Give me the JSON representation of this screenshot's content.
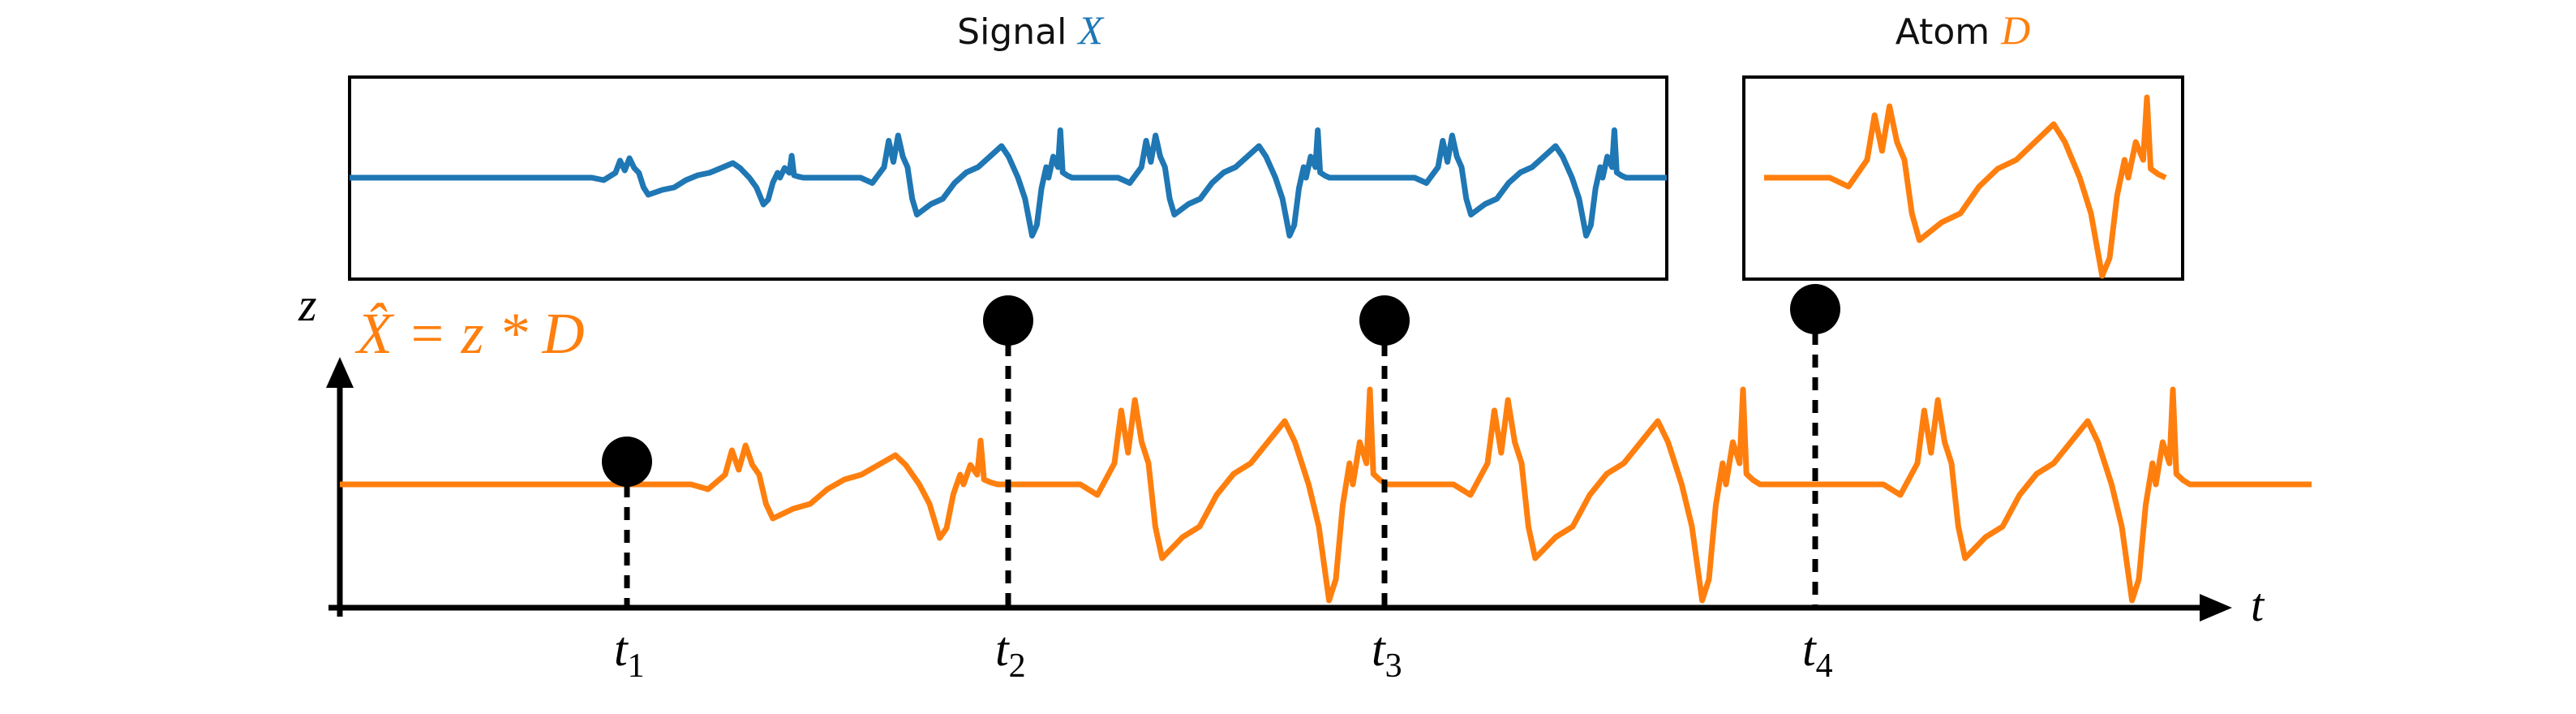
{
  "signal": {
    "label": "Signal",
    "symbol": "X"
  },
  "atom": {
    "label": "Atom",
    "symbol": "D"
  },
  "axes": {
    "y_label": "z",
    "x_label": "t"
  },
  "formula": "X̂ = z * D",
  "markers": [
    {
      "label": "t",
      "subscript": "1"
    },
    {
      "label": "t",
      "subscript": "2"
    },
    {
      "label": "t",
      "subscript": "3"
    },
    {
      "label": "t",
      "subscript": "4"
    }
  ]
}
